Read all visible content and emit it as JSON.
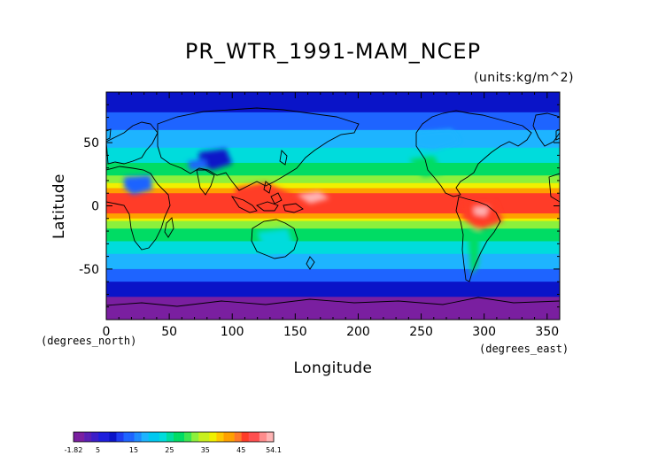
{
  "map": {
    "title": "PR_WTR_1991-MAM_NCEP",
    "units": "(units:kg/m^2)",
    "xlabel": "Longitude",
    "ylabel": "Latitude",
    "x_unit_note": "(degrees_east)",
    "y_unit_note": "(degrees_north)",
    "x_ticks": [
      0,
      50,
      100,
      150,
      200,
      250,
      300,
      350
    ],
    "y_ticks": [
      50,
      0,
      -50
    ],
    "xlim": [
      0,
      360
    ],
    "ylim": [
      -90,
      90
    ],
    "colorbar": {
      "labels": [
        "-1.82",
        "5",
        "15",
        "25",
        "35",
        "45",
        "54.1"
      ],
      "min": -1.82,
      "max": 54.1
    },
    "colors": {
      "polar": "#7a1fa0",
      "dark_blue": "#0a14c8",
      "blue": "#1e64ff",
      "light_blue": "#1eb4ff",
      "cyan": "#00dcdc",
      "green": "#00dc64",
      "light_green": "#8cf03c",
      "yellow": "#f0f000",
      "orange": "#ffa000",
      "red": "#ff3c28",
      "pink": "#ffb4b4"
    }
  }
}
